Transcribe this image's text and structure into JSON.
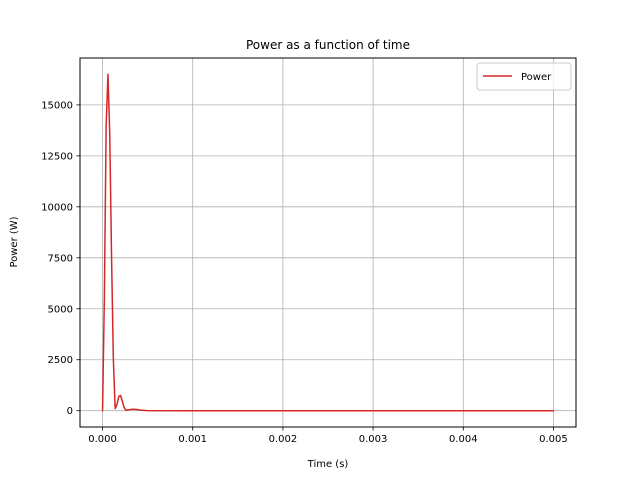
{
  "chart_data": {
    "type": "line",
    "title": "Power as a function of time",
    "xlabel": "Time (s)",
    "ylabel": "Power (W)",
    "xlim": [
      -0.00025,
      0.00525
    ],
    "ylim": [
      -800,
      17300
    ],
    "x_ticks": [
      0,
      0.001,
      0.002,
      0.003,
      0.004,
      0.005
    ],
    "x_tick_labels": [
      "0.000",
      "0.001",
      "0.002",
      "0.003",
      "0.004",
      "0.005"
    ],
    "y_ticks": [
      0,
      2500,
      5000,
      7500,
      10000,
      12500,
      15000
    ],
    "y_tick_labels": [
      "0",
      "2500",
      "5000",
      "7500",
      "10000",
      "12500",
      "15000"
    ],
    "grid": true,
    "legend_position": "top-right",
    "series": [
      {
        "name": "Power",
        "color": "#d62728",
        "x": [
          0,
          2e-05,
          4e-05,
          6e-05,
          8e-05,
          0.0001,
          0.00012,
          0.00014,
          0.00016,
          0.00018,
          0.0002,
          0.00022,
          0.00024,
          0.00026,
          0.0003,
          0.00034,
          0.00038,
          0.00042,
          0.0005,
          0.001,
          0.002,
          0.003,
          0.004,
          0.005
        ],
        "y": [
          0,
          5500,
          14000,
          16500,
          13500,
          7500,
          2500,
          100,
          300,
          700,
          750,
          450,
          150,
          20,
          50,
          70,
          60,
          30,
          5,
          0,
          0,
          0,
          0,
          0
        ]
      }
    ]
  }
}
